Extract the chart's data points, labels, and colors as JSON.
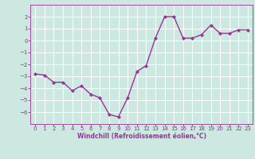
{
  "x": [
    0,
    1,
    2,
    3,
    4,
    5,
    6,
    7,
    8,
    9,
    10,
    11,
    12,
    13,
    14,
    15,
    16,
    17,
    18,
    19,
    20,
    21,
    22,
    23
  ],
  "y": [
    -2.8,
    -2.9,
    -3.5,
    -3.5,
    -4.2,
    -3.8,
    -4.5,
    -4.8,
    -6.2,
    -6.4,
    -4.8,
    -2.6,
    -2.1,
    0.2,
    2.0,
    2.0,
    0.2,
    0.2,
    0.5,
    1.3,
    0.6,
    0.6,
    0.9,
    0.9
  ],
  "line_color": "#993399",
  "marker": "D",
  "marker_size": 2.0,
  "line_width": 1.0,
  "bg_color": "#cce8e0",
  "grid_color": "#ffffff",
  "xlabel": "Windchill (Refroidissement éolien,°C)",
  "xlabel_color": "#993399",
  "tick_color": "#993399",
  "label_color": "#993399",
  "ylim": [
    -7,
    3
  ],
  "xlim": [
    -0.5,
    23.5
  ],
  "yticks": [
    -6,
    -5,
    -4,
    -3,
    -2,
    -1,
    0,
    1,
    2
  ],
  "xticks": [
    0,
    1,
    2,
    3,
    4,
    5,
    6,
    7,
    8,
    9,
    10,
    11,
    12,
    13,
    14,
    15,
    16,
    17,
    18,
    19,
    20,
    21,
    22,
    23
  ],
  "tick_fontsize": 5.0,
  "xlabel_fontsize": 5.5,
  "spine_color": "#993399"
}
